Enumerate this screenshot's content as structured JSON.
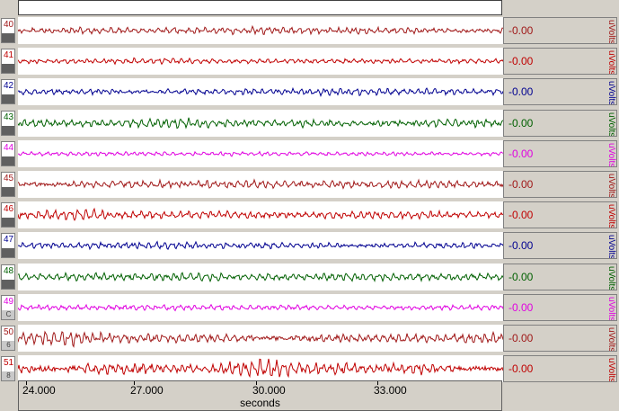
{
  "channels": [
    {
      "num": "40",
      "value": "-0.00",
      "unit": "uVolts",
      "color": "#a01818",
      "bar": "",
      "amp": 3.2,
      "burst": 0.4,
      "seed": 11
    },
    {
      "num": "41",
      "value": "-0.00",
      "unit": "uVolts",
      "color": "#c00000",
      "bar": "",
      "amp": 2.4,
      "burst": 0.5,
      "seed": 23
    },
    {
      "num": "42",
      "value": "-0.00",
      "unit": "uVolts",
      "color": "#000090",
      "bar": "",
      "amp": 3.0,
      "burst": 0.4,
      "seed": 37
    },
    {
      "num": "43",
      "value": "-0.00",
      "unit": "uVolts",
      "color": "#006000",
      "bar": "",
      "amp": 3.8,
      "burst": 0.6,
      "seed": 41
    },
    {
      "num": "44",
      "value": "-0.00",
      "unit": "uVolts",
      "color": "#e000e0",
      "bar": "",
      "amp": 2.0,
      "burst": 0.3,
      "seed": 53
    },
    {
      "num": "45",
      "value": "-0.00",
      "unit": "uVolts",
      "color": "#a01818",
      "bar": "",
      "amp": 3.6,
      "burst": 0.6,
      "seed": 67
    },
    {
      "num": "46",
      "value": "-0.00",
      "unit": "uVolts",
      "color": "#c00000",
      "bar": "",
      "amp": 3.8,
      "burst": 0.8,
      "seed": 71
    },
    {
      "num": "47",
      "value": "-0.00",
      "unit": "uVolts",
      "color": "#000090",
      "bar": "",
      "amp": 3.0,
      "burst": 0.5,
      "seed": 83
    },
    {
      "num": "48",
      "value": "-0.00",
      "unit": "uVolts",
      "color": "#006000",
      "bar": "",
      "amp": 3.6,
      "burst": 0.6,
      "seed": 97
    },
    {
      "num": "49",
      "value": "-0.00",
      "unit": "uVolts",
      "color": "#e000e0",
      "bar": "C",
      "amp": 2.6,
      "burst": 0.4,
      "seed": 101
    },
    {
      "num": "50",
      "value": "-0.00",
      "unit": "uVolts",
      "color": "#a01818",
      "bar": "6",
      "amp": 4.6,
      "burst": 1.0,
      "seed": 113
    },
    {
      "num": "51",
      "value": "-0.00",
      "unit": "uVolts",
      "color": "#c00000",
      "bar": "8",
      "amp": 5.6,
      "burst": 1.2,
      "seed": 127
    }
  ],
  "axis": {
    "ticks": [
      "24.000",
      "27.000",
      "30.000",
      "33.000"
    ],
    "label": "seconds"
  }
}
